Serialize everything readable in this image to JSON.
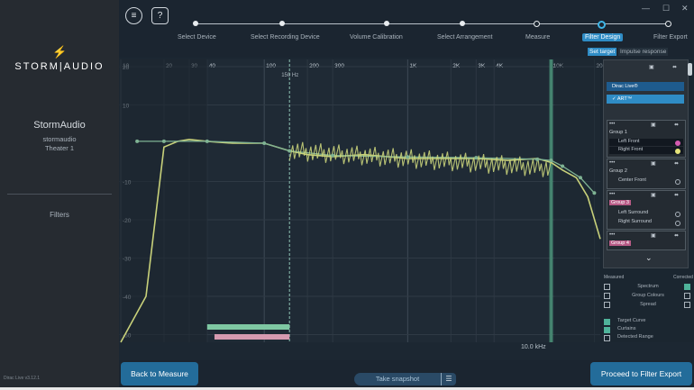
{
  "sidebar": {
    "logo_symbol": "⚡",
    "logo_text": "STORM|AUDIO",
    "device_name": "StormAudio",
    "device_host": "stormaudio",
    "device_theater": "Theater 1",
    "filters_label": "Filters",
    "version": "Dirac Live v3.12.1"
  },
  "topbar": {
    "menu_icon": "≡",
    "help_icon": "?",
    "window": {
      "minimize": "—",
      "maximize": "☐",
      "close": "✕"
    },
    "steps": [
      {
        "label": "Select Device",
        "state": "done"
      },
      {
        "label": "Select Recording Device",
        "state": "done"
      },
      {
        "label": "Volume Calibration",
        "state": "done"
      },
      {
        "label": "Select Arrangement",
        "state": "done"
      },
      {
        "label": "Measure",
        "state": "pending"
      },
      {
        "label": "Filter Design",
        "state": "active"
      },
      {
        "label": "Filter Export",
        "state": "pending"
      }
    ],
    "tabs": {
      "set_target": "Set target",
      "impulse_response": "Impulse response"
    }
  },
  "chart_data": {
    "type": "line",
    "xscale": "log",
    "xlim": [
      10,
      22000
    ],
    "ylim": [
      -52,
      20
    ],
    "x_ticks": [
      "10",
      "20",
      "30",
      "40",
      "100",
      "200",
      "300",
      "1K",
      "2K",
      "3K",
      "4K",
      "10K",
      "20K"
    ],
    "y_ticks": [
      "20",
      "10",
      "-10",
      "-20",
      "-30",
      "-40",
      "-50"
    ],
    "markers": [
      {
        "label": "150 Hz",
        "x": 150
      },
      {
        "label": "10.0 kHz",
        "x": 10000
      }
    ],
    "series": [
      {
        "color": "#c8d17a",
        "x": [
          10,
          15,
          20,
          25,
          30,
          40,
          60,
          100,
          150,
          200,
          300,
          500,
          1000,
          2000,
          3000,
          5000,
          8000,
          10000,
          12000,
          15000,
          18000,
          22000
        ],
        "y": [
          -52,
          -40,
          -1,
          0.5,
          1,
          0.5,
          0,
          0,
          -2,
          -3,
          -3.5,
          -3,
          -4,
          -4,
          -4,
          -4.5,
          -4,
          -5,
          -7,
          -9,
          -14,
          -25
        ]
      },
      {
        "color": "#7fb394",
        "x": [
          13,
          20,
          40,
          100,
          150,
          300,
          1000,
          3000,
          8000,
          10000,
          12000,
          16000,
          20000
        ],
        "y": [
          0.5,
          0.5,
          0.5,
          0,
          -2,
          -3.2,
          -3.6,
          -3.8,
          -4.2,
          -4.5,
          -6,
          -9,
          -13
        ]
      }
    ],
    "ranges": [
      {
        "from": 40,
        "to": 150,
        "color": "#7ec7a2"
      },
      {
        "from": 45,
        "to": 150,
        "color": "#d69ab0"
      }
    ]
  },
  "right_panel": {
    "dirac_items": [
      "Dirac Live®",
      "ART™"
    ],
    "groups": [
      {
        "label": "Group 1",
        "tagged": false,
        "channels": [
          "Left Front",
          "Right Front"
        ]
      },
      {
        "label": "Group 2",
        "tagged": false,
        "channels": [
          "Center Front"
        ]
      },
      {
        "label": "Group 3",
        "tagged": true,
        "channels": [
          "Left Surround",
          "Right Surround"
        ]
      },
      {
        "label": "Group 4",
        "tagged": true,
        "channels": []
      }
    ],
    "chevron": "⌄",
    "group_more": "•••",
    "group_icons": [
      "▣",
      "⬌"
    ]
  },
  "measurements": {
    "measured": "Measured",
    "corrected": "Corrected",
    "rows": [
      {
        "label": "Spectrum",
        "measured": false,
        "corrected": true
      },
      {
        "label": "Group Colours",
        "measured": false,
        "corrected": false
      },
      {
        "label": "Spread",
        "measured": false,
        "corrected": false
      }
    ],
    "legend": [
      {
        "label": "Target Curve",
        "checked": true
      },
      {
        "label": "Curtains",
        "checked": true
      },
      {
        "label": "Detected Range",
        "checked": false
      }
    ]
  },
  "bottom": {
    "back": "Back to Measure",
    "snapshot": "Take snapshot",
    "snapshot_icon": "☰",
    "proceed": "Proceed to Filter Export"
  }
}
